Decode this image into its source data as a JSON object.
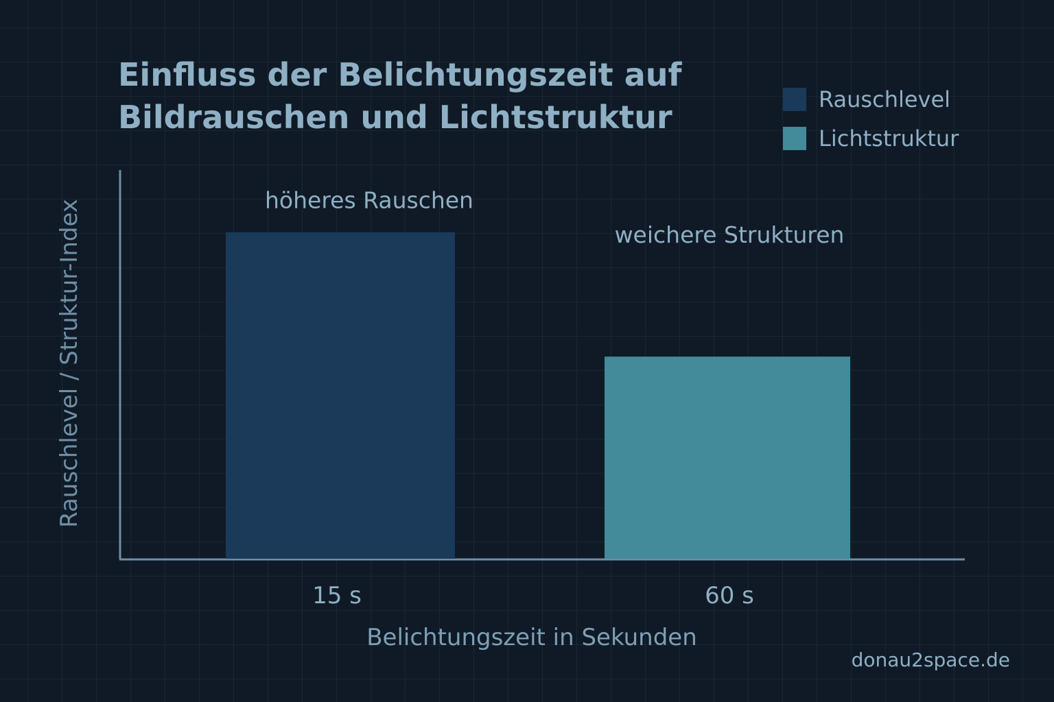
{
  "chart_data": {
    "type": "bar",
    "title_lines": [
      "Einfluss der Belichtungszeit auf",
      "Bildrauschen und Lichtstruktur"
    ],
    "xlabel": "Belichtungszeit in Sekunden",
    "ylabel": "Rauschlevel / Struktur-Index",
    "categories": [
      "15 s",
      "60 s"
    ],
    "series": [
      {
        "name": "Rauschlevel",
        "color": "#1b3a5a",
        "values": [
          84,
          null
        ]
      },
      {
        "name": "Lichtstruktur",
        "color": "#438a9a",
        "values": [
          null,
          52
        ]
      }
    ],
    "annotations": [
      "höheres Rauschen",
      "weichere Strukturen"
    ],
    "ylim": [
      0,
      100
    ],
    "grid": true,
    "legend": "top-right"
  },
  "watermark": "donau2space.de"
}
